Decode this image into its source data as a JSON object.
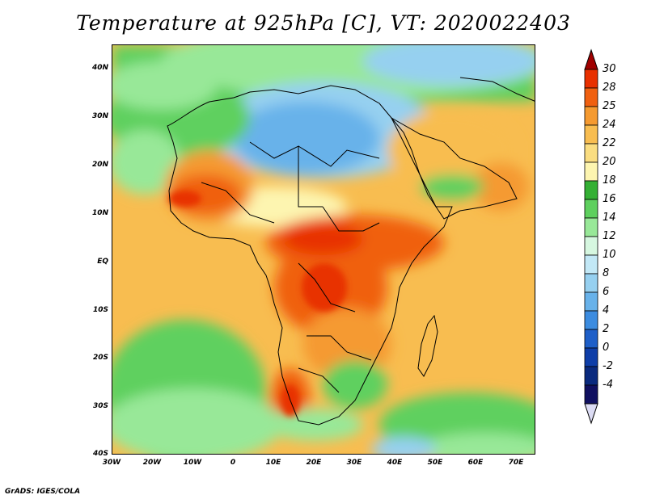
{
  "title": "Temperature at 925hPa [C], VT: 2020022403",
  "credit": "GrADS: IGES/COLA",
  "map": {
    "variable": "Temperature at 925hPa",
    "units": "C",
    "valid_time": "2020022403",
    "region": "Africa",
    "lon_range": [
      -30,
      75
    ],
    "lat_range": [
      -40,
      45
    ],
    "lat_tick_labels": [
      "40N",
      "30N",
      "20N",
      "10N",
      "EQ",
      "10S",
      "20S",
      "30S",
      "40S"
    ],
    "lon_tick_labels": [
      "30W",
      "20W",
      "10W",
      "0",
      "10E",
      "20E",
      "30E",
      "40E",
      "50E",
      "60E",
      "70E"
    ]
  },
  "colorbar": {
    "labels": [
      "30",
      "28",
      "25",
      "24",
      "22",
      "20",
      "18",
      "16",
      "14",
      "12",
      "10",
      "8",
      "6",
      "4",
      "2",
      "0",
      "-2",
      "-4"
    ],
    "colors": [
      "#a00000",
      "#e83000",
      "#f06010",
      "#f59a30",
      "#f8bd50",
      "#fadd80",
      "#fdf5b0",
      "#34b034",
      "#5ed05e",
      "#98e898",
      "#d6f7e0",
      "#c2e8f6",
      "#96d0f0",
      "#68b2ea",
      "#3c8ce0",
      "#1e5fc8",
      "#0e3ea8",
      "#0a2a7e",
      "#101060",
      "#dcdcf4"
    ]
  }
}
